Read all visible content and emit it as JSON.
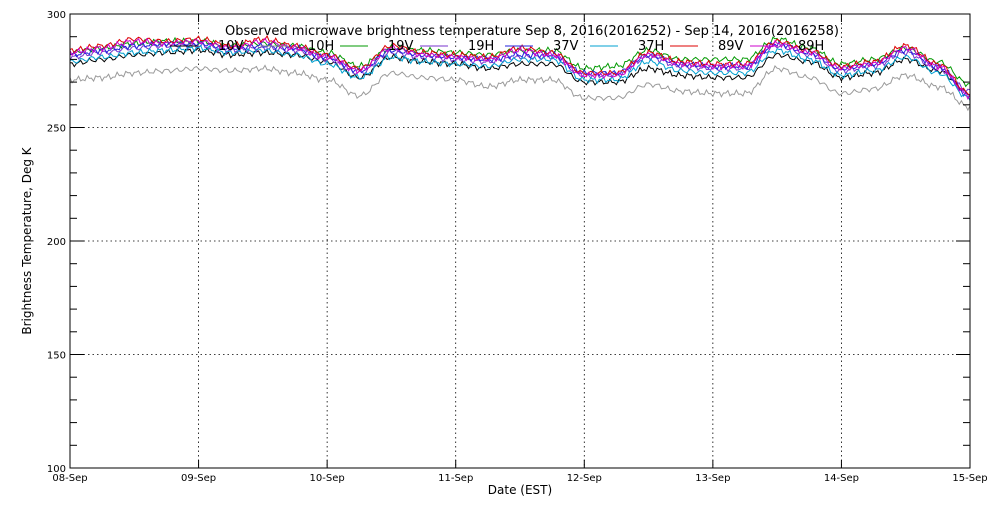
{
  "chart_data": {
    "type": "line",
    "title": "Observed microwave brightness temperature Sep  8, 2016(2016252) - Sep 14, 2016(2016258)",
    "xlabel": "Date (EST)",
    "ylabel": "Brightness Temperature, Deg K",
    "ylim": [
      100,
      300
    ],
    "yticks": [
      100,
      150,
      200,
      250,
      300
    ],
    "yticks_minor": [
      110,
      120,
      130,
      140,
      160,
      170,
      180,
      190,
      210,
      220,
      230,
      240,
      260,
      270,
      280,
      290
    ],
    "xlim": [
      "2016-09-08",
      "2016-09-15"
    ],
    "x_ticks": [
      "08-Sep",
      "09-Sep",
      "10-Sep",
      "11-Sep",
      "12-Sep",
      "13-Sep",
      "14-Sep",
      "15-Sep"
    ],
    "grid": true,
    "legend_position": "top",
    "x_days": [
      8.0,
      8.25,
      8.5,
      8.75,
      9.0,
      9.25,
      9.5,
      9.75,
      10.0,
      10.25,
      10.5,
      10.75,
      11.0,
      11.25,
      11.5,
      11.75,
      12.0,
      12.25,
      12.5,
      12.75,
      13.0,
      13.25,
      13.5,
      13.75,
      14.0,
      14.25,
      14.5,
      14.75,
      15.0
    ],
    "series": [
      {
        "name": "10V",
        "color": "#000000",
        "values": [
          278,
          280,
          282,
          283,
          284,
          282,
          283,
          282,
          279,
          272,
          281,
          279,
          278,
          276,
          278,
          278,
          270,
          270,
          276,
          273,
          272,
          272,
          282,
          279,
          272,
          274,
          280,
          275,
          265
        ]
      },
      {
        "name": "10H",
        "color": "#9a9a9a",
        "values": [
          271,
          272,
          274,
          275,
          276,
          275,
          276,
          274,
          271,
          264,
          274,
          272,
          271,
          268,
          271,
          271,
          263,
          263,
          269,
          266,
          265,
          265,
          276,
          272,
          265,
          267,
          273,
          268,
          259
        ]
      },
      {
        "name": "19V",
        "color": "#009900",
        "values": [
          283,
          285,
          287,
          288,
          288,
          286,
          287,
          286,
          283,
          277,
          285,
          284,
          283,
          282,
          284,
          284,
          276,
          277,
          284,
          280,
          280,
          280,
          289,
          285,
          278,
          280,
          285,
          279,
          269
        ]
      },
      {
        "name": "19H",
        "color": "#7733cc",
        "values": [
          281,
          283,
          285,
          286,
          286,
          284,
          285,
          284,
          280,
          274,
          283,
          281,
          280,
          279,
          281,
          281,
          273,
          273,
          281,
          277,
          276,
          276,
          286,
          282,
          275,
          277,
          283,
          276,
          266
        ]
      },
      {
        "name": "37V",
        "color": "#2222dd",
        "values": [
          282,
          284,
          286,
          287,
          287,
          285,
          286,
          285,
          281,
          275,
          284,
          282,
          281,
          280,
          282,
          282,
          274,
          274,
          282,
          278,
          277,
          277,
          287,
          283,
          276,
          278,
          284,
          277,
          264
        ]
      },
      {
        "name": "37H",
        "color": "#00a0d0",
        "values": [
          279,
          281,
          283,
          284,
          285,
          283,
          284,
          282,
          278,
          272,
          281,
          279,
          278,
          277,
          280,
          280,
          271,
          271,
          279,
          275,
          274,
          274,
          284,
          280,
          273,
          275,
          281,
          274,
          263
        ]
      },
      {
        "name": "89V",
        "color": "#dd0000",
        "values": [
          284,
          286,
          289,
          288,
          289,
          286,
          289,
          286,
          282,
          276,
          286,
          283,
          282,
          281,
          285,
          283,
          274,
          274,
          283,
          279,
          278,
          278,
          288,
          284,
          277,
          279,
          286,
          278,
          265
        ]
      },
      {
        "name": "89H",
        "color": "#cc00cc",
        "values": [
          283,
          285,
          288,
          287,
          288,
          285,
          288,
          285,
          281,
          275,
          285,
          282,
          281,
          280,
          284,
          282,
          273,
          273,
          282,
          278,
          277,
          277,
          287,
          283,
          276,
          278,
          285,
          277,
          264
        ]
      }
    ]
  }
}
